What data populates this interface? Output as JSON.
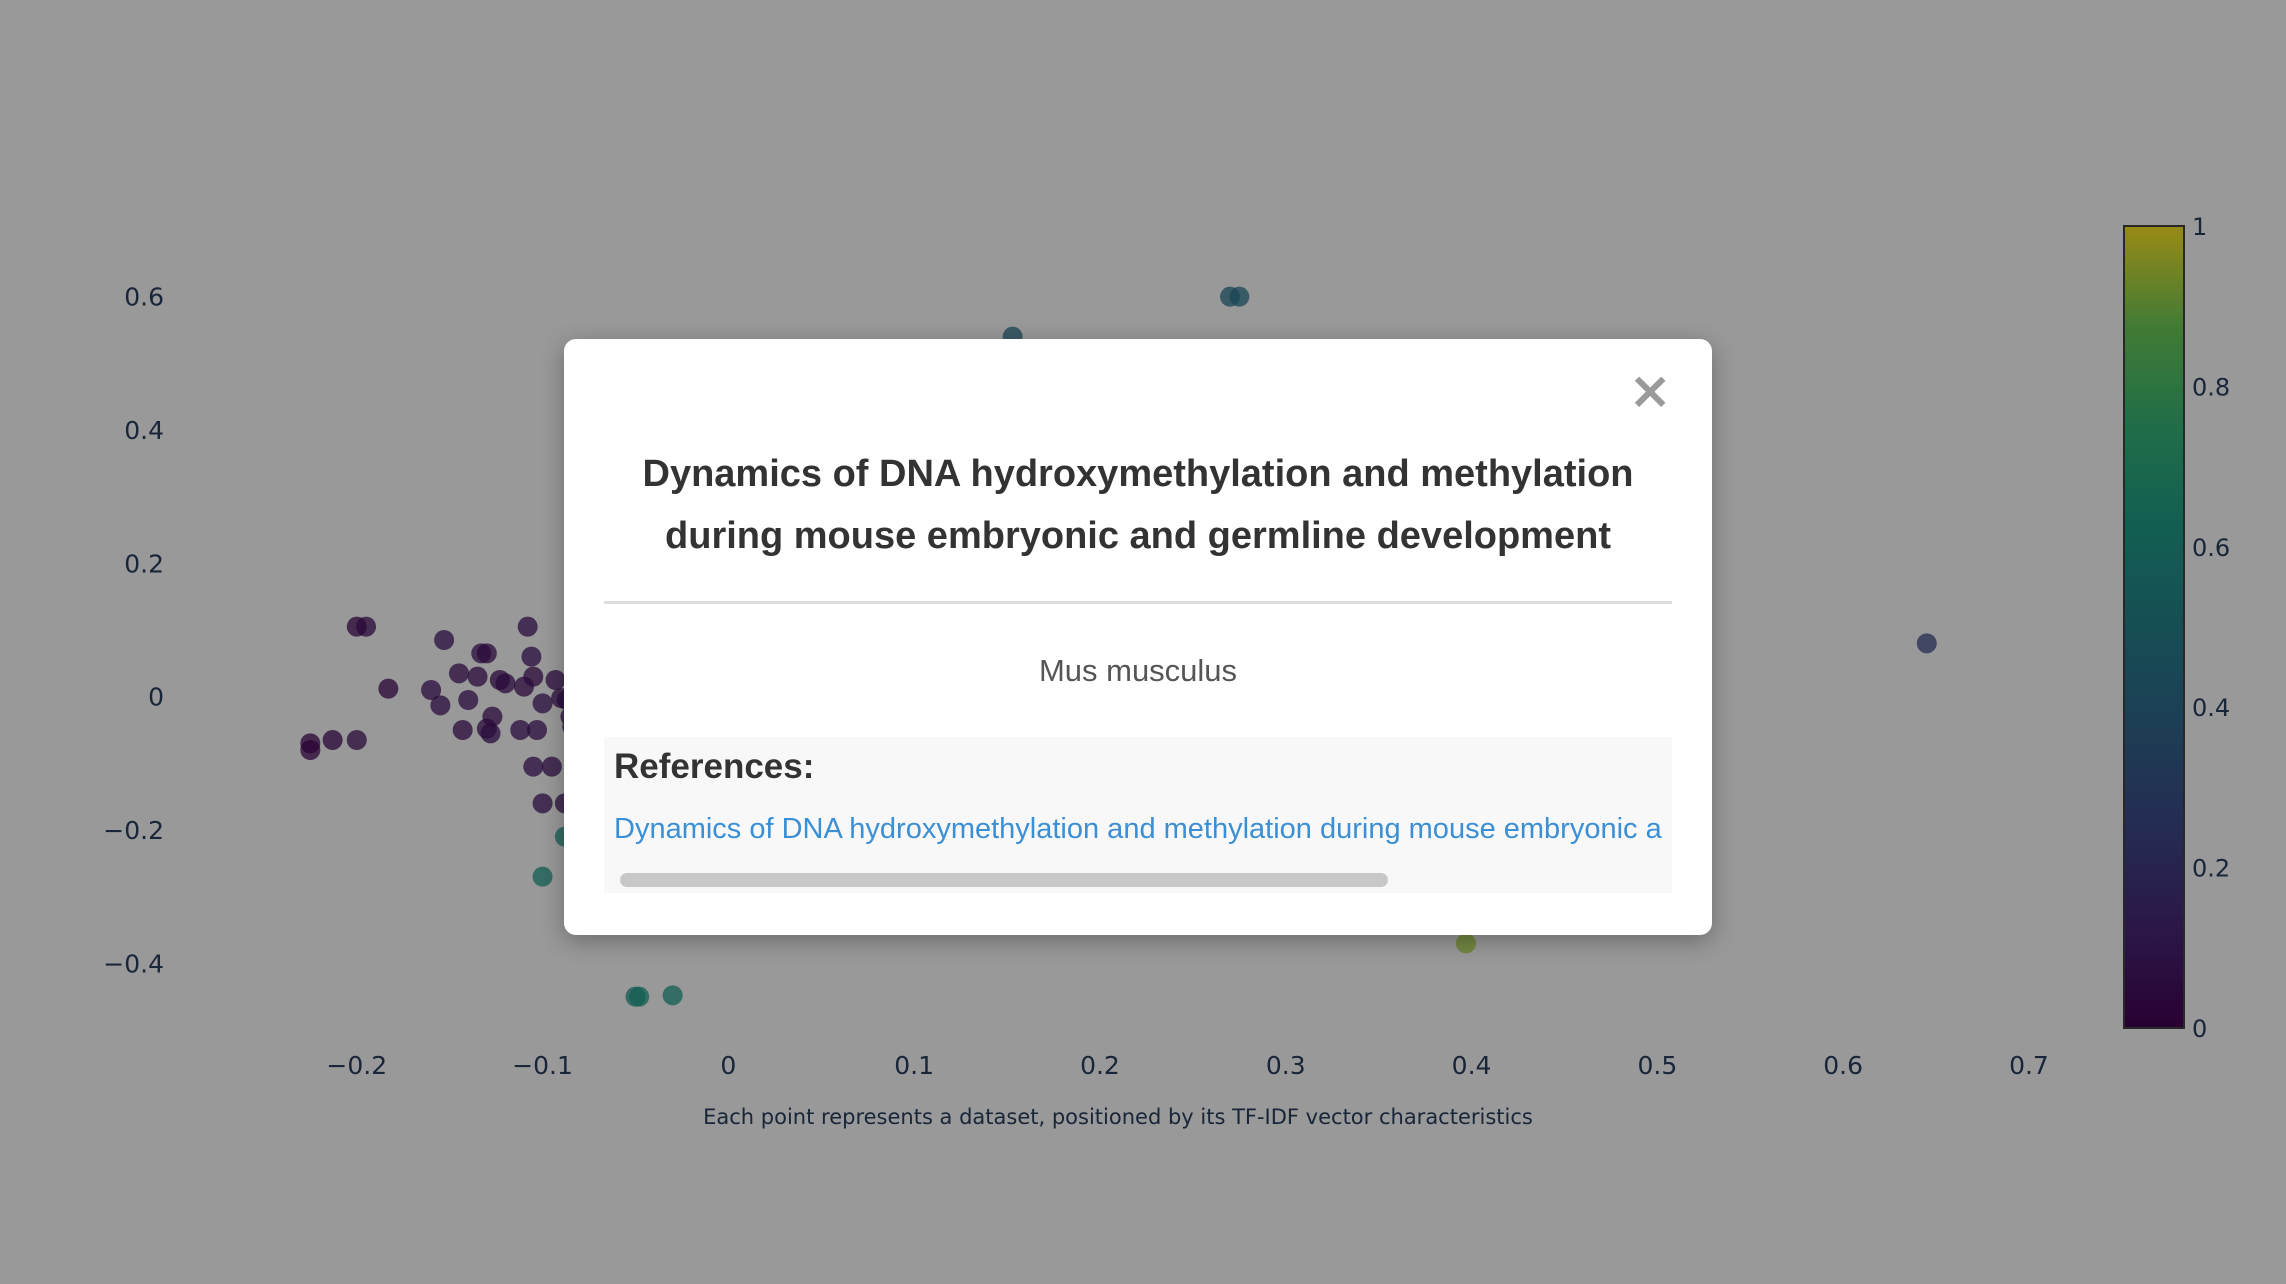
{
  "chart_data": {
    "type": "scatter",
    "title": "",
    "xlabel": "",
    "ylabel": "",
    "caption": "Each point represents a dataset, positioned by its TF-IDF vector characteristics",
    "xlim": [
      -0.265,
      0.735
    ],
    "ylim": [
      -0.53,
      0.73
    ],
    "x_ticks": [
      -0.2,
      -0.1,
      0,
      0.1,
      0.2,
      0.3,
      0.4,
      0.5,
      0.6,
      0.7
    ],
    "x_tick_labels": [
      "−0.2",
      "−0.1",
      "0",
      "0.1",
      "0.2",
      "0.3",
      "0.4",
      "0.5",
      "0.6",
      "0.7"
    ],
    "y_ticks": [
      0.6,
      0.4,
      0.2,
      0,
      -0.2,
      -0.4
    ],
    "y_tick_labels": [
      "0.6",
      "0.4",
      "0.2",
      "0",
      "−0.2",
      "−0.4"
    ],
    "grid": false,
    "colorscale": "viridis",
    "colorbar": {
      "range": [
        0,
        1
      ],
      "ticks": [
        0,
        0.2,
        0.4,
        0.6,
        0.8,
        1
      ],
      "tick_labels": [
        "0",
        "0.2",
        "0.4",
        "0.6",
        "0.8",
        "1"
      ]
    },
    "points": [
      {
        "x": -0.225,
        "y": -0.08,
        "c": 0.02
      },
      {
        "x": -0.225,
        "y": -0.07,
        "c": 0.02
      },
      {
        "x": -0.213,
        "y": -0.065,
        "c": 0.03
      },
      {
        "x": -0.2,
        "y": -0.065,
        "c": 0.05
      },
      {
        "x": -0.2,
        "y": 0.105,
        "c": 0.02
      },
      {
        "x": -0.195,
        "y": 0.105,
        "c": 0.04
      },
      {
        "x": -0.183,
        "y": 0.012,
        "c": 0.02
      },
      {
        "x": -0.16,
        "y": 0.01,
        "c": 0.06
      },
      {
        "x": -0.155,
        "y": -0.013,
        "c": 0.06
      },
      {
        "x": -0.153,
        "y": 0.085,
        "c": 0.07
      },
      {
        "x": -0.145,
        "y": 0.035,
        "c": 0.05
      },
      {
        "x": -0.143,
        "y": -0.05,
        "c": 0.05
      },
      {
        "x": -0.14,
        "y": -0.005,
        "c": 0.06
      },
      {
        "x": -0.135,
        "y": 0.03,
        "c": 0.05
      },
      {
        "x": -0.133,
        "y": 0.065,
        "c": 0.06
      },
      {
        "x": -0.13,
        "y": 0.065,
        "c": 0.05
      },
      {
        "x": -0.13,
        "y": -0.048,
        "c": 0.05
      },
      {
        "x": -0.128,
        "y": -0.055,
        "c": 0.06
      },
      {
        "x": -0.127,
        "y": -0.03,
        "c": 0.05
      },
      {
        "x": -0.123,
        "y": 0.025,
        "c": 0.04
      },
      {
        "x": -0.12,
        "y": 0.02,
        "c": 0.05
      },
      {
        "x": -0.112,
        "y": -0.05,
        "c": 0.06
      },
      {
        "x": -0.11,
        "y": 0.015,
        "c": 0.05
      },
      {
        "x": -0.108,
        "y": 0.105,
        "c": 0.06
      },
      {
        "x": -0.106,
        "y": 0.06,
        "c": 0.07
      },
      {
        "x": -0.105,
        "y": 0.03,
        "c": 0.05
      },
      {
        "x": -0.103,
        "y": -0.05,
        "c": 0.06
      },
      {
        "x": -0.105,
        "y": -0.105,
        "c": 0.06
      },
      {
        "x": -0.1,
        "y": -0.01,
        "c": 0.07
      },
      {
        "x": -0.1,
        "y": -0.16,
        "c": 0.06
      },
      {
        "x": -0.095,
        "y": -0.105,
        "c": 0.06
      },
      {
        "x": -0.093,
        "y": 0.025,
        "c": 0.05
      },
      {
        "x": -0.09,
        "y": -0.002,
        "c": 0.06
      },
      {
        "x": -0.088,
        "y": -0.16,
        "c": 0.07
      },
      {
        "x": -0.087,
        "y": -0.005,
        "c": 0.07
      },
      {
        "x": -0.085,
        "y": -0.03,
        "c": 0.06
      },
      {
        "x": -0.084,
        "y": -0.045,
        "c": 0.06
      },
      {
        "x": -0.082,
        "y": 0.028,
        "c": 0.05
      },
      {
        "x": -0.08,
        "y": 0.0,
        "c": 0.06
      },
      {
        "x": -0.078,
        "y": 0.06,
        "c": 0.07
      },
      {
        "x": -0.075,
        "y": -0.005,
        "c": 0.06
      },
      {
        "x": -0.075,
        "y": 0.16,
        "c": 0.85
      },
      {
        "x": -0.088,
        "y": -0.21,
        "c": 0.62
      },
      {
        "x": -0.1,
        "y": -0.27,
        "c": 0.62
      },
      {
        "x": -0.05,
        "y": -0.45,
        "c": 0.6
      },
      {
        "x": -0.048,
        "y": -0.45,
        "c": 0.62
      },
      {
        "x": -0.03,
        "y": -0.448,
        "c": 0.62
      },
      {
        "x": 0.153,
        "y": 0.54,
        "c": 0.42
      },
      {
        "x": 0.27,
        "y": 0.6,
        "c": 0.42
      },
      {
        "x": 0.275,
        "y": 0.6,
        "c": 0.44
      },
      {
        "x": 0.645,
        "y": 0.08,
        "c": 0.25
      },
      {
        "x": 0.397,
        "y": -0.37,
        "c": 0.93
      }
    ]
  },
  "modal": {
    "close_label": "×",
    "title": "Dynamics of DNA hydroxymethylation and methylation during mouse embryonic and germline development",
    "organism": "Mus musculus",
    "references_heading": "References:",
    "reference_link": "Dynamics of DNA hydroxymethylation and methylation during mouse embryonic and germline development"
  },
  "colors": {
    "overlay": "#000000",
    "link": "#3a8fd6",
    "axis_text": "#2a3f5f"
  }
}
